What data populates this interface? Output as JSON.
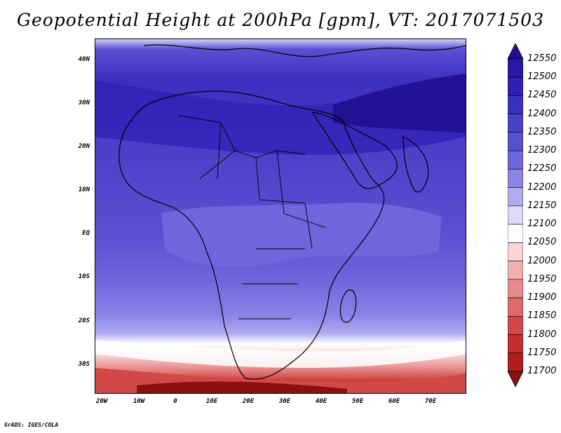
{
  "title": "Geopotential Height at 200hPa [gpm], VT: 2017071503",
  "credit": "GrADS: IGES/COLA",
  "map": {
    "lat_labels": [
      "40N",
      "30N",
      "20N",
      "10N",
      "EQ",
      "10S",
      "20S",
      "30S"
    ],
    "lon_labels": [
      "20W",
      "10W",
      "0",
      "10E",
      "20E",
      "30E",
      "40E",
      "50E",
      "60E",
      "70E"
    ]
  },
  "colorbar": {
    "levels": [
      "12550",
      "12500",
      "12450",
      "12400",
      "12350",
      "12300",
      "12250",
      "12200",
      "12150",
      "12100",
      "12050",
      "12000",
      "11950",
      "11900",
      "11850",
      "11800",
      "11750",
      "11700"
    ],
    "colors": [
      "#20108f",
      "#2818a5",
      "#3020b5",
      "#3b2fc0",
      "#4a40c8",
      "#5a50d2",
      "#6e66dc",
      "#8a84e6",
      "#b0acf0",
      "#dcdaf8",
      "#ffffff",
      "#f8d6d6",
      "#f0b0b0",
      "#e68a8a",
      "#dd6a6a",
      "#d24848",
      "#c42e2e",
      "#b01e1e",
      "#8c1010"
    ]
  }
}
